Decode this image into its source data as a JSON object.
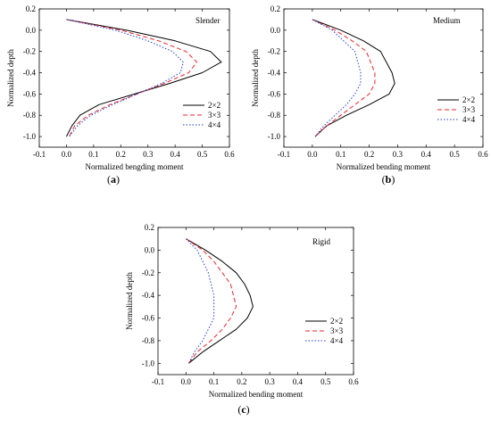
{
  "chart_data": [
    {
      "type": "line",
      "panel_label": "a",
      "annotation": "Slender",
      "xlabel": "Normalized bengding moment",
      "ylabel": "Normalized depth",
      "xlim": [
        -0.1,
        0.6
      ],
      "ylim": [
        -1.1,
        0.2
      ],
      "xticks": [
        "-0.1",
        "0.0",
        "0.1",
        "0.2",
        "0.3",
        "0.4",
        "0.5",
        "0.6"
      ],
      "yticks": [
        "0.2",
        "0.0",
        "-0.2",
        "-0.4",
        "-0.6",
        "-0.8",
        "-1.0"
      ],
      "legend_position": "bottom-right",
      "series": [
        {
          "name": "2×2",
          "color": "#000000",
          "dash": "solid",
          "points": [
            [
              0.0,
              0.1
            ],
            [
              0.22,
              0.0
            ],
            [
              0.4,
              -0.1
            ],
            [
              0.53,
              -0.2
            ],
            [
              0.57,
              -0.3
            ],
            [
              0.5,
              -0.4
            ],
            [
              0.38,
              -0.5
            ],
            [
              0.25,
              -0.6
            ],
            [
              0.12,
              -0.7
            ],
            [
              0.05,
              -0.8
            ],
            [
              0.02,
              -0.9
            ],
            [
              0.0,
              -1.0
            ]
          ]
        },
        {
          "name": "3×3",
          "color": "#e8262b",
          "dash": "dashed",
          "points": [
            [
              0.0,
              0.1
            ],
            [
              0.2,
              0.0
            ],
            [
              0.34,
              -0.1
            ],
            [
              0.44,
              -0.2
            ],
            [
              0.48,
              -0.3
            ],
            [
              0.45,
              -0.4
            ],
            [
              0.36,
              -0.5
            ],
            [
              0.26,
              -0.6
            ],
            [
              0.16,
              -0.7
            ],
            [
              0.08,
              -0.8
            ],
            [
              0.03,
              -0.9
            ],
            [
              0.01,
              -1.0
            ]
          ]
        },
        {
          "name": "4×4",
          "color": "#1f3fd8",
          "dash": "dotted",
          "points": [
            [
              0.0,
              0.1
            ],
            [
              0.18,
              0.0
            ],
            [
              0.3,
              -0.1
            ],
            [
              0.39,
              -0.2
            ],
            [
              0.43,
              -0.3
            ],
            [
              0.42,
              -0.4
            ],
            [
              0.35,
              -0.5
            ],
            [
              0.26,
              -0.6
            ],
            [
              0.17,
              -0.7
            ],
            [
              0.09,
              -0.8
            ],
            [
              0.04,
              -0.9
            ],
            [
              0.01,
              -1.0
            ]
          ]
        }
      ]
    },
    {
      "type": "line",
      "panel_label": "b",
      "annotation": "Medium",
      "xlabel": "Normalized bending moment",
      "ylabel": "Normalized depth",
      "xlim": [
        -0.1,
        0.6
      ],
      "ylim": [
        -1.1,
        0.2
      ],
      "xticks": [
        "-0.1",
        "0.0",
        "0.1",
        "0.2",
        "0.3",
        "0.4",
        "0.5",
        "0.6"
      ],
      "yticks": [
        "0.2",
        "0.0",
        "-0.2",
        "-0.4",
        "-0.6",
        "-0.8",
        "-1.0"
      ],
      "legend_position": "right",
      "series": [
        {
          "name": "2×2",
          "color": "#000000",
          "dash": "solid",
          "points": [
            [
              0.0,
              0.1
            ],
            [
              0.1,
              0.0
            ],
            [
              0.18,
              -0.1
            ],
            [
              0.24,
              -0.2
            ],
            [
              0.28,
              -0.4
            ],
            [
              0.29,
              -0.5
            ],
            [
              0.27,
              -0.6
            ],
            [
              0.2,
              -0.7
            ],
            [
              0.12,
              -0.8
            ],
            [
              0.05,
              -0.9
            ],
            [
              0.01,
              -1.0
            ]
          ]
        },
        {
          "name": "3×3",
          "color": "#e8262b",
          "dash": "dashed",
          "points": [
            [
              0.0,
              0.1
            ],
            [
              0.08,
              0.0
            ],
            [
              0.14,
              -0.1
            ],
            [
              0.19,
              -0.2
            ],
            [
              0.22,
              -0.4
            ],
            [
              0.22,
              -0.5
            ],
            [
              0.2,
              -0.6
            ],
            [
              0.15,
              -0.7
            ],
            [
              0.1,
              -0.8
            ],
            [
              0.05,
              -0.9
            ],
            [
              0.01,
              -1.0
            ]
          ]
        },
        {
          "name": "4×4",
          "color": "#1f3fd8",
          "dash": "dotted",
          "points": [
            [
              0.0,
              0.1
            ],
            [
              0.07,
              0.0
            ],
            [
              0.11,
              -0.1
            ],
            [
              0.15,
              -0.2
            ],
            [
              0.17,
              -0.4
            ],
            [
              0.17,
              -0.5
            ],
            [
              0.15,
              -0.6
            ],
            [
              0.12,
              -0.7
            ],
            [
              0.08,
              -0.8
            ],
            [
              0.04,
              -0.9
            ],
            [
              0.01,
              -1.0
            ]
          ]
        }
      ]
    },
    {
      "type": "line",
      "panel_label": "c",
      "annotation": "Rigid",
      "xlabel": "Normalized bending moment",
      "ylabel": "Normalized depth",
      "xlim": [
        -0.1,
        0.6
      ],
      "ylim": [
        -1.1,
        0.2
      ],
      "xticks": [
        "-0.1",
        "0.0",
        "0.1",
        "0.2",
        "0.3",
        "0.4",
        "0.5",
        "0.6"
      ],
      "yticks": [
        "0.2",
        "0.0",
        "-0.2",
        "-0.4",
        "-0.6",
        "-0.8",
        "-1.0"
      ],
      "legend_position": "right",
      "series": [
        {
          "name": "2×2",
          "color": "#000000",
          "dash": "solid",
          "points": [
            [
              0.0,
              0.1
            ],
            [
              0.07,
              0.0
            ],
            [
              0.13,
              -0.1
            ],
            [
              0.18,
              -0.2
            ],
            [
              0.21,
              -0.3
            ],
            [
              0.23,
              -0.4
            ],
            [
              0.24,
              -0.5
            ],
            [
              0.22,
              -0.6
            ],
            [
              0.18,
              -0.7
            ],
            [
              0.12,
              -0.8
            ],
            [
              0.06,
              -0.9
            ],
            [
              0.01,
              -1.0
            ]
          ]
        },
        {
          "name": "3×3",
          "color": "#e8262b",
          "dash": "dashed",
          "points": [
            [
              0.0,
              0.1
            ],
            [
              0.06,
              0.0
            ],
            [
              0.1,
              -0.1
            ],
            [
              0.13,
              -0.2
            ],
            [
              0.16,
              -0.3
            ],
            [
              0.17,
              -0.4
            ],
            [
              0.18,
              -0.5
            ],
            [
              0.16,
              -0.6
            ],
            [
              0.13,
              -0.7
            ],
            [
              0.09,
              -0.8
            ],
            [
              0.04,
              -0.9
            ],
            [
              0.01,
              -1.0
            ]
          ]
        },
        {
          "name": "4×4",
          "color": "#1f3fd8",
          "dash": "dotted",
          "points": [
            [
              0.0,
              0.1
            ],
            [
              0.04,
              0.0
            ],
            [
              0.06,
              -0.1
            ],
            [
              0.08,
              -0.2
            ],
            [
              0.09,
              -0.3
            ],
            [
              0.1,
              -0.4
            ],
            [
              0.1,
              -0.5
            ],
            [
              0.1,
              -0.6
            ],
            [
              0.08,
              -0.7
            ],
            [
              0.06,
              -0.8
            ],
            [
              0.03,
              -0.9
            ],
            [
              0.01,
              -1.0
            ]
          ]
        }
      ]
    }
  ]
}
